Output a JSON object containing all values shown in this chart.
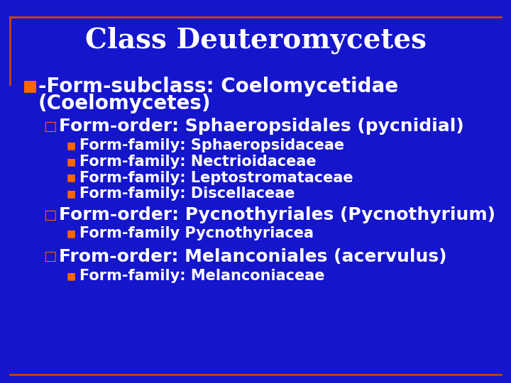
{
  "title": "Class Deuteromycetes",
  "bg_color": "#1515CC",
  "title_color": "#FFFFFF",
  "title_fontsize": 28,
  "border_color": "#CC4400",
  "bullet_orange": "#FF6600",
  "text_white": "#FFFFFF",
  "level1_text1": "-Form-subclass: Coelomycetidae",
  "level1_text2": "(Coelomycetes)",
  "level1_fontsize": 20,
  "level2_fontsize": 18,
  "child_fontsize": 15,
  "level2_items": [
    {
      "text": "Form-order: Sphaeropsidales (pycnidial)",
      "children": [
        "Form-family: Sphaeropsidaceae",
        "Form-family: Nectrioidaceae",
        "Form-family: Leptostromataceae",
        "Form-family: Discellaceae"
      ]
    },
    {
      "text": "Form-order: Pycnothyriales (Pycnothyrium)",
      "children": [
        "Form-family Pycnothyriacea"
      ]
    },
    {
      "text": "From-order: Melanconiales (acervulus)",
      "children": [
        "Form-family: Melanconiaceae"
      ]
    }
  ]
}
